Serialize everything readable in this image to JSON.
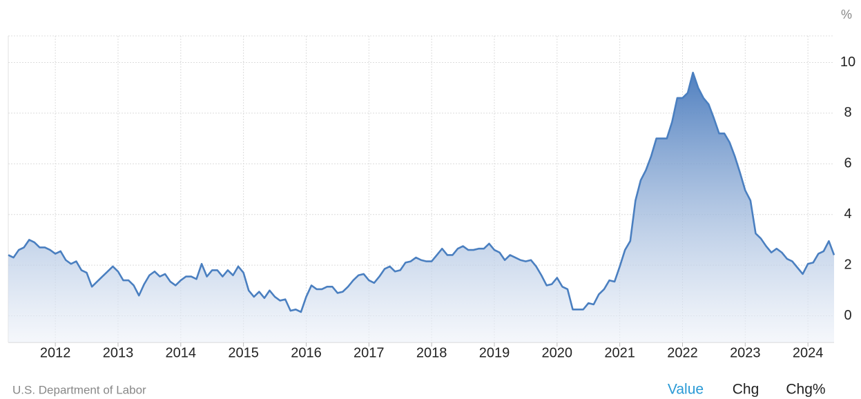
{
  "chart_data": {
    "type": "area",
    "unit": "%",
    "color": "#4a7fc0",
    "grid": true,
    "xlim": [
      "2011-04",
      "2024-06"
    ],
    "xticks": [
      "2012",
      "2013",
      "2014",
      "2015",
      "2016",
      "2017",
      "2018",
      "2019",
      "2020",
      "2021",
      "2022",
      "2023",
      "2024"
    ],
    "ylim": [
      -1.05,
      11.05
    ],
    "yticks": [
      0,
      2,
      4,
      6,
      8,
      10
    ],
    "x": [
      "2011-04",
      "2011-05",
      "2011-06",
      "2011-07",
      "2011-08",
      "2011-09",
      "2011-10",
      "2011-11",
      "2011-12",
      "2012-01",
      "2012-02",
      "2012-03",
      "2012-04",
      "2012-05",
      "2012-06",
      "2012-07",
      "2012-08",
      "2012-09",
      "2012-10",
      "2012-11",
      "2012-12",
      "2013-01",
      "2013-02",
      "2013-03",
      "2013-04",
      "2013-05",
      "2013-06",
      "2013-07",
      "2013-08",
      "2013-09",
      "2013-10",
      "2013-11",
      "2013-12",
      "2014-01",
      "2014-02",
      "2014-03",
      "2014-04",
      "2014-05",
      "2014-06",
      "2014-07",
      "2014-08",
      "2014-09",
      "2014-10",
      "2014-11",
      "2014-12",
      "2015-01",
      "2015-02",
      "2015-03",
      "2015-04",
      "2015-05",
      "2015-06",
      "2015-07",
      "2015-08",
      "2015-09",
      "2015-10",
      "2015-11",
      "2015-12",
      "2016-01",
      "2016-02",
      "2016-03",
      "2016-04",
      "2016-05",
      "2016-06",
      "2016-07",
      "2016-08",
      "2016-09",
      "2016-10",
      "2016-11",
      "2016-12",
      "2017-01",
      "2017-02",
      "2017-03",
      "2017-04",
      "2017-05",
      "2017-06",
      "2017-07",
      "2017-08",
      "2017-09",
      "2017-10",
      "2017-11",
      "2017-12",
      "2018-01",
      "2018-02",
      "2018-03",
      "2018-04",
      "2018-05",
      "2018-06",
      "2018-07",
      "2018-08",
      "2018-09",
      "2018-10",
      "2018-11",
      "2018-12",
      "2019-01",
      "2019-02",
      "2019-03",
      "2019-04",
      "2019-05",
      "2019-06",
      "2019-07",
      "2019-08",
      "2019-09",
      "2019-10",
      "2019-11",
      "2019-12",
      "2020-01",
      "2020-02",
      "2020-03",
      "2020-04",
      "2020-05",
      "2020-06",
      "2020-07",
      "2020-08",
      "2020-09",
      "2020-10",
      "2020-11",
      "2020-12",
      "2021-01",
      "2021-02",
      "2021-03",
      "2021-04",
      "2021-05",
      "2021-06",
      "2021-07",
      "2021-08",
      "2021-09",
      "2021-10",
      "2021-11",
      "2021-12",
      "2022-01",
      "2022-02",
      "2022-03",
      "2022-04",
      "2022-05",
      "2022-06",
      "2022-07",
      "2022-08",
      "2022-09",
      "2022-10",
      "2022-11",
      "2022-12",
      "2023-01",
      "2023-02",
      "2023-03",
      "2023-04",
      "2023-05",
      "2023-06",
      "2023-07",
      "2023-08",
      "2023-09",
      "2023-10",
      "2023-11",
      "2023-12",
      "2024-01",
      "2024-02",
      "2024-03",
      "2024-04",
      "2024-05",
      "2024-06"
    ],
    "values": [
      2.4,
      2.3,
      2.6,
      2.7,
      3.0,
      2.9,
      2.7,
      2.7,
      2.6,
      2.45,
      2.55,
      2.2,
      2.05,
      2.15,
      1.8,
      1.7,
      1.15,
      1.35,
      1.55,
      1.75,
      1.95,
      1.75,
      1.4,
      1.4,
      1.2,
      0.8,
      1.25,
      1.6,
      1.75,
      1.55,
      1.65,
      1.35,
      1.2,
      1.4,
      1.55,
      1.55,
      1.45,
      2.05,
      1.55,
      1.8,
      1.8,
      1.55,
      1.8,
      1.6,
      1.95,
      1.7,
      1.0,
      0.75,
      0.95,
      0.7,
      1.0,
      0.75,
      0.6,
      0.65,
      0.2,
      0.25,
      0.15,
      0.75,
      1.2,
      1.05,
      1.05,
      1.15,
      1.15,
      0.9,
      0.95,
      1.15,
      1.4,
      1.6,
      1.65,
      1.4,
      1.3,
      1.55,
      1.85,
      1.95,
      1.75,
      1.8,
      2.1,
      2.15,
      2.3,
      2.2,
      2.15,
      2.15,
      2.4,
      2.65,
      2.4,
      2.4,
      2.65,
      2.75,
      2.6,
      2.6,
      2.65,
      2.65,
      2.85,
      2.6,
      2.5,
      2.2,
      2.4,
      2.3,
      2.2,
      2.15,
      2.2,
      1.95,
      1.6,
      1.2,
      1.25,
      1.5,
      1.15,
      1.05,
      0.25,
      0.25,
      0.25,
      0.5,
      0.45,
      0.85,
      1.05,
      1.4,
      1.35,
      1.95,
      2.6,
      2.95,
      4.55,
      5.35,
      5.75,
      6.3,
      7.0,
      7.0,
      7.0,
      7.65,
      8.6,
      8.6,
      8.8,
      9.6,
      9.0,
      8.6,
      8.35,
      7.8,
      7.2,
      7.2,
      6.85,
      6.3,
      5.65,
      4.95,
      4.55,
      3.25,
      3.05,
      2.75,
      2.5,
      2.65,
      2.5,
      2.25,
      2.15,
      1.9,
      1.65,
      2.05,
      2.1,
      2.45,
      2.55,
      2.95,
      2.4
    ]
  },
  "footer": {
    "source": "U.S. Department of Labor",
    "tabs": [
      "Value",
      "Chg",
      "Chg%"
    ]
  }
}
